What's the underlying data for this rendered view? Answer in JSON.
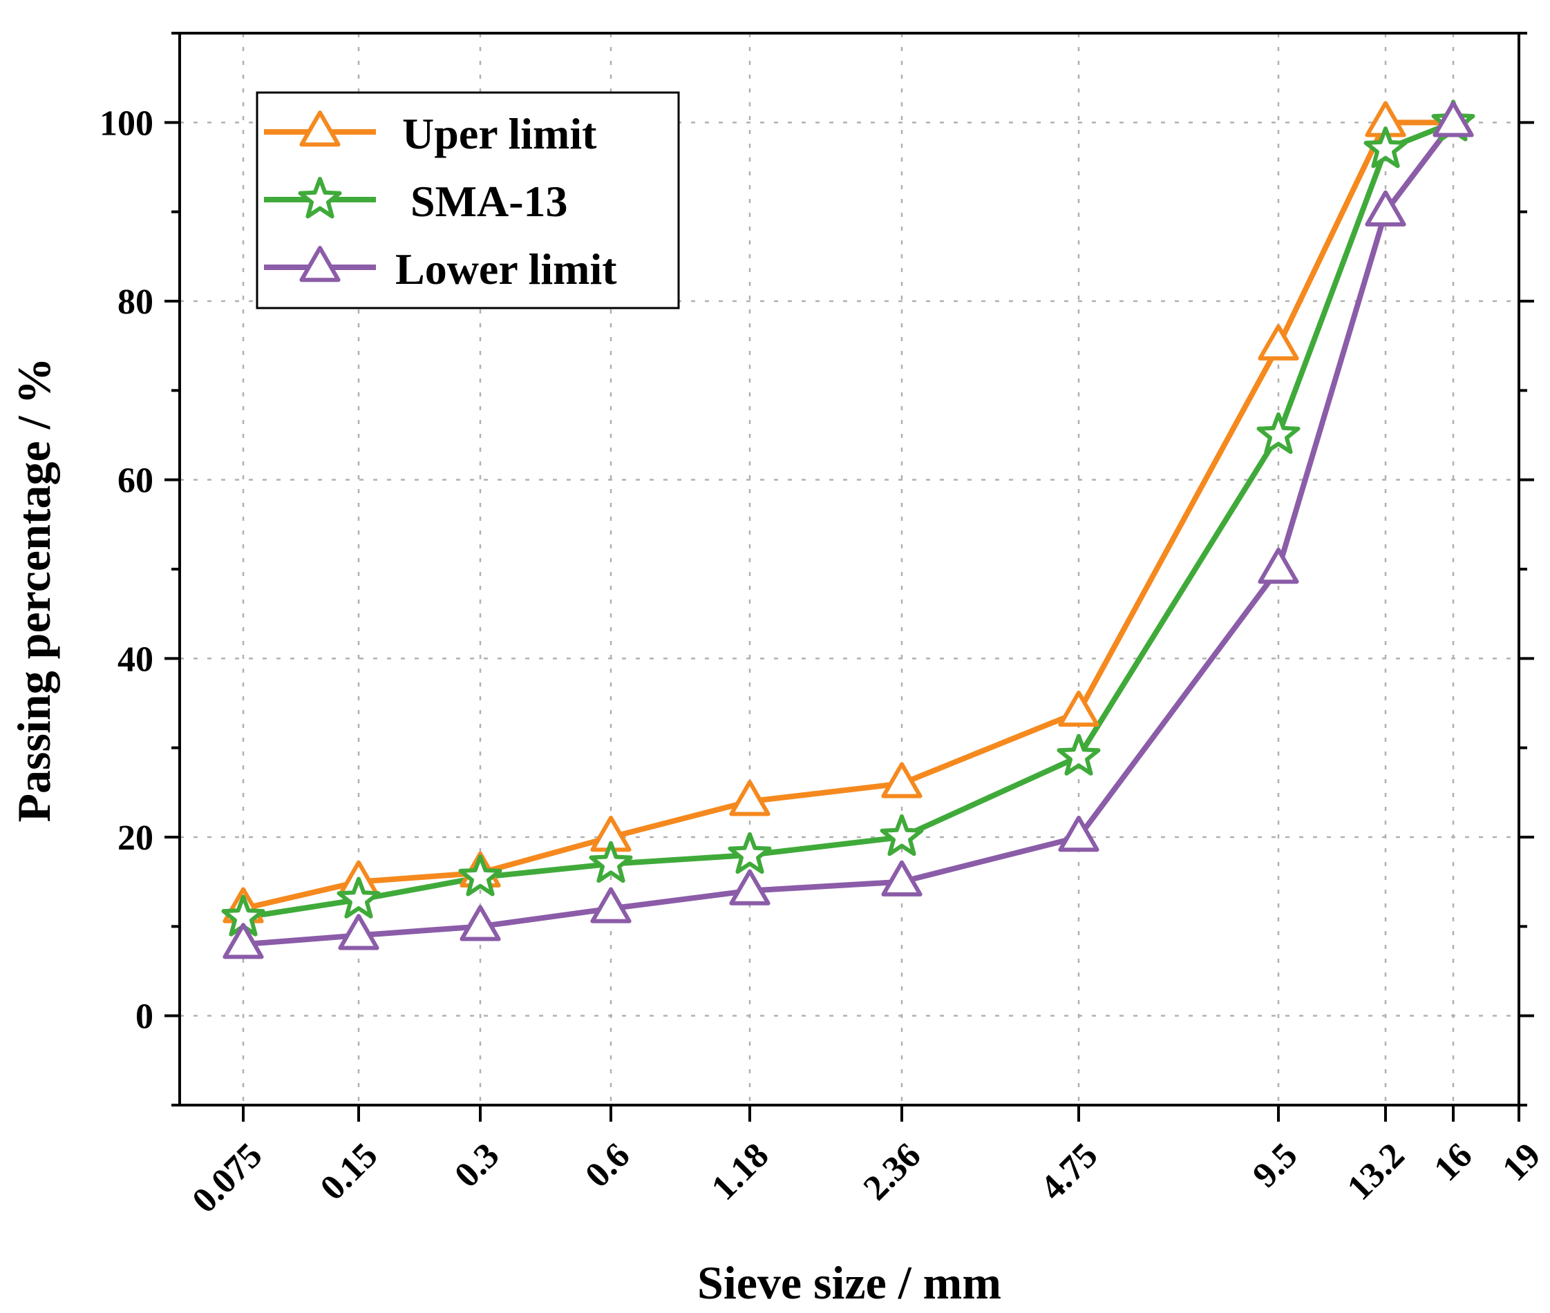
{
  "chart_data": {
    "type": "line",
    "title": "",
    "xlabel": "Sieve size / mm",
    "ylabel": "Passing percentage / %",
    "categories": [
      "0.075",
      "0.15",
      "0.3",
      "0.6",
      "1.18",
      "2.36",
      "4.75",
      "9.5",
      "13.2",
      "16"
    ],
    "extra_tick_labels": [
      "19"
    ],
    "ylim": [
      -10,
      110
    ],
    "yticks": [
      0,
      20,
      40,
      60,
      80,
      100
    ],
    "grid": true,
    "legend_position": "top-left",
    "series": [
      {
        "name": "Uper limit",
        "marker": "triangle",
        "color": "#f5891e",
        "values": [
          12,
          15,
          16,
          20,
          24,
          26,
          34,
          75,
          100,
          100
        ]
      },
      {
        "name": "SMA-13",
        "marker": "star",
        "color": "#3faa3a",
        "values": [
          11,
          13,
          15.5,
          17,
          18,
          20,
          29,
          65,
          97,
          100
        ]
      },
      {
        "name": "Lower limit",
        "marker": "triangle",
        "color": "#8b5ca8",
        "values": [
          8,
          9,
          10,
          12,
          14,
          15,
          20,
          50,
          90,
          100
        ]
      }
    ]
  }
}
